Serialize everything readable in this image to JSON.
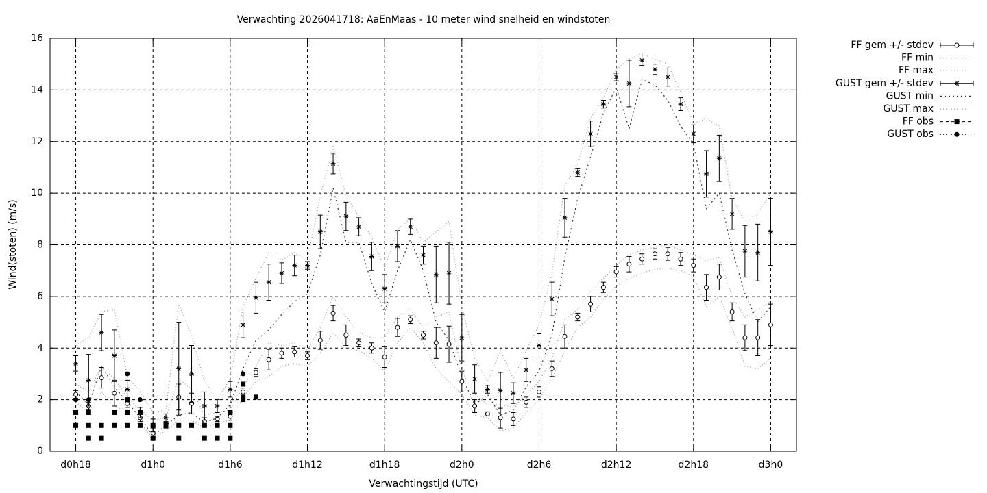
{
  "chart_data": {
    "type": "errorbar",
    "title": "Verwachting 2026041718: AaEnMaas - 10 meter wind snelheid en windstoten",
    "xlabel": "Verwachtingstijd (UTC)",
    "ylabel": "Wind(stoten) (m/s)",
    "xlim": [
      16,
      74
    ],
    "ylim": [
      0,
      16
    ],
    "xticks": [
      {
        "value": 18,
        "label": "d0h18"
      },
      {
        "value": 24,
        "label": "d1h0"
      },
      {
        "value": 30,
        "label": "d1h6"
      },
      {
        "value": 36,
        "label": "d1h12"
      },
      {
        "value": 42,
        "label": "d1h18"
      },
      {
        "value": 48,
        "label": "d2h0"
      },
      {
        "value": 54,
        "label": "d2h6"
      },
      {
        "value": 60,
        "label": "d2h12"
      },
      {
        "value": 66,
        "label": "d2h18"
      },
      {
        "value": 72,
        "label": "d3h0"
      }
    ],
    "yticks": [
      0,
      2,
      4,
      6,
      8,
      10,
      12,
      14,
      16
    ],
    "grid": true,
    "legend": "outside-top-right",
    "x": [
      18,
      19,
      20,
      21,
      22,
      23,
      24,
      25,
      26,
      27,
      28,
      29,
      30,
      31,
      32,
      33,
      34,
      35,
      36,
      37,
      38,
      39,
      40,
      41,
      42,
      43,
      44,
      45,
      46,
      47,
      48,
      49,
      50,
      51,
      52,
      53,
      54,
      55,
      56,
      57,
      58,
      59,
      60,
      61,
      62,
      63,
      64,
      65,
      66,
      67,
      68,
      69,
      70,
      71,
      72
    ],
    "series": [
      {
        "name": "FF gem +/- stdev",
        "color": "#000000",
        "style": "errorbar",
        "marker": "open-circle",
        "values": [
          2.2,
          1.75,
          2.85,
          2.25,
          1.85,
          1.3,
          0.7,
          1.0,
          2.1,
          1.85,
          1.15,
          1.25,
          1.35,
          2.3,
          3.05,
          3.55,
          3.8,
          3.85,
          3.7,
          4.3,
          5.35,
          4.5,
          4.2,
          4.0,
          3.65,
          4.8,
          5.1,
          4.5,
          4.2,
          4.15,
          2.7,
          1.75,
          1.45,
          1.3,
          1.25,
          1.9,
          2.3,
          3.2,
          4.45,
          5.2,
          5.7,
          6.35,
          6.95,
          7.25,
          7.45,
          7.65,
          7.65,
          7.45,
          7.2,
          6.35,
          6.75,
          5.4,
          4.4,
          4.4,
          4.9
        ],
        "error": [
          0.15,
          0.15,
          0.4,
          0.5,
          0.15,
          0.15,
          0.2,
          0.1,
          0.5,
          0.4,
          0.15,
          0.1,
          0.15,
          0.15,
          0.15,
          0.4,
          0.2,
          0.2,
          0.15,
          0.35,
          0.3,
          0.4,
          0.15,
          0.2,
          0.4,
          0.35,
          0.15,
          0.15,
          0.6,
          0.7,
          0.4,
          0.25,
          0.08,
          0.4,
          0.25,
          0.2,
          0.2,
          0.3,
          0.45,
          0.15,
          0.3,
          0.2,
          0.2,
          0.3,
          0.2,
          0.2,
          0.25,
          0.25,
          0.25,
          0.5,
          0.5,
          0.35,
          0.5,
          0.7,
          0.8
        ]
      },
      {
        "name": "FF min",
        "color": "#999999",
        "style": "line",
        "dash": "1,3",
        "values": [
          1.9,
          1.5,
          2.3,
          1.7,
          1.6,
          1.1,
          0.5,
          0.8,
          1.2,
          1.2,
          0.9,
          1.1,
          1.2,
          2.1,
          2.7,
          2.9,
          3.3,
          3.4,
          3.3,
          3.8,
          4.6,
          4.0,
          3.9,
          3.6,
          3.1,
          4.2,
          4.8,
          4.2,
          3.2,
          2.7,
          2.2,
          1.4,
          1.3,
          0.8,
          0.9,
          1.5,
          2.0,
          2.8,
          3.9,
          4.8,
          5.2,
          5.9,
          6.4,
          6.7,
          6.9,
          7.05,
          7.1,
          7.0,
          6.8,
          5.6,
          6.0,
          4.8,
          3.3,
          3.2,
          3.6
        ]
      },
      {
        "name": "FF max",
        "color": "#999999",
        "style": "line",
        "dash": "1,3",
        "values": [
          2.6,
          2.3,
          3.3,
          2.8,
          2.1,
          1.6,
          1.2,
          1.3,
          2.8,
          2.4,
          1.4,
          1.5,
          1.6,
          2.5,
          3.3,
          4.2,
          4.1,
          4.2,
          3.9,
          4.8,
          6.0,
          5.2,
          4.6,
          4.4,
          4.4,
          5.2,
          5.5,
          4.8,
          5.2,
          5.4,
          3.1,
          2.2,
          1.8,
          1.8,
          1.7,
          2.2,
          2.7,
          3.6,
          5.1,
          5.5,
          6.2,
          6.7,
          7.2,
          7.6,
          7.8,
          7.9,
          8.0,
          7.8,
          7.6,
          7.4,
          7.5,
          6.0,
          5.2,
          5.5,
          5.8
        ]
      },
      {
        "name": "GUST gem +/- stdev",
        "color": "#000000",
        "style": "errorbar",
        "marker": "star",
        "values": [
          3.4,
          2.75,
          4.6,
          3.7,
          2.4,
          1.5,
          1.0,
          1.3,
          3.2,
          3.0,
          1.75,
          1.75,
          2.4,
          4.9,
          5.95,
          6.55,
          6.9,
          7.2,
          7.2,
          8.5,
          11.15,
          9.1,
          8.7,
          7.55,
          6.3,
          7.95,
          8.7,
          7.6,
          6.85,
          6.9,
          4.4,
          2.8,
          2.4,
          2.35,
          2.25,
          3.15,
          4.1,
          5.9,
          9.05,
          10.8,
          12.3,
          13.45,
          14.5,
          14.25,
          15.15,
          14.8,
          14.5,
          13.45,
          12.3,
          10.75,
          11.35,
          9.2,
          7.75,
          7.7,
          8.5
        ],
        "error": [
          0.3,
          1.0,
          0.7,
          1.0,
          0.35,
          0.2,
          0.25,
          0.15,
          1.8,
          1.1,
          0.55,
          0.25,
          0.3,
          0.5,
          0.6,
          0.7,
          0.4,
          0.4,
          0.15,
          0.65,
          0.4,
          0.55,
          0.35,
          0.55,
          0.55,
          0.6,
          0.3,
          0.35,
          1.1,
          1.2,
          0.9,
          0.55,
          0.15,
          0.7,
          0.4,
          0.45,
          0.45,
          0.65,
          0.75,
          0.15,
          0.5,
          0.15,
          0.15,
          0.9,
          0.2,
          0.2,
          0.35,
          0.25,
          0.35,
          0.9,
          0.9,
          0.6,
          1.0,
          1.1,
          1.3
        ]
      },
      {
        "name": "GUST min",
        "color": "#333333",
        "style": "line",
        "dash": "2,4",
        "values": [
          2.3,
          1.8,
          3.3,
          2.5,
          1.9,
          1.3,
          0.6,
          1.0,
          1.4,
          1.5,
          1.1,
          1.3,
          1.8,
          3.2,
          4.3,
          4.7,
          5.3,
          5.8,
          6.1,
          7.6,
          10.2,
          8.1,
          8.1,
          6.5,
          5.4,
          7.0,
          8.2,
          7.0,
          5.0,
          4.3,
          2.9,
          1.8,
          2.2,
          1.4,
          1.6,
          2.5,
          3.1,
          4.5,
          7.5,
          9.8,
          11.4,
          13.1,
          14.1,
          12.5,
          14.4,
          14.2,
          13.6,
          12.6,
          11.9,
          9.4,
          10.0,
          7.8,
          6.1,
          5.0,
          5.6
        ]
      },
      {
        "name": "GUST max",
        "color": "#999999",
        "style": "line",
        "dash": "1,3",
        "values": [
          4.1,
          4.4,
          5.4,
          5.5,
          2.9,
          2.3,
          1.5,
          1.6,
          5.7,
          4.5,
          2.7,
          2.0,
          2.8,
          5.6,
          6.7,
          7.7,
          7.4,
          7.7,
          7.4,
          9.9,
          11.8,
          9.9,
          9.1,
          8.3,
          7.1,
          8.6,
          9.0,
          8.1,
          8.5,
          8.9,
          5.6,
          3.6,
          2.7,
          3.9,
          2.8,
          3.9,
          4.9,
          6.9,
          10.3,
          11.1,
          12.9,
          13.7,
          14.8,
          15.2,
          15.4,
          15.2,
          15.0,
          13.9,
          12.7,
          12.9,
          12.6,
          9.8,
          8.9,
          9.2,
          10.0
        ]
      },
      {
        "name": "FF obs",
        "color": "#000000",
        "style": "points",
        "marker": "square",
        "x": [
          18,
          18,
          19,
          19,
          19,
          20,
          20,
          21,
          21,
          22,
          22,
          22,
          23,
          23,
          24,
          24,
          25,
          26,
          26,
          27,
          28,
          28,
          29,
          29,
          30,
          30,
          30,
          31,
          31,
          31,
          32
        ],
        "values": [
          1.0,
          1.5,
          0.5,
          1.0,
          1.5,
          0.5,
          1.0,
          1.0,
          1.5,
          1.0,
          1.5,
          2.0,
          1.0,
          1.5,
          0.5,
          1.0,
          1.0,
          0.5,
          1.0,
          1.0,
          0.5,
          1.0,
          0.5,
          1.0,
          0.5,
          1.0,
          1.5,
          2.0,
          2.1,
          2.6,
          2.1
        ]
      },
      {
        "name": "GUST obs",
        "color": "#000000",
        "style": "points",
        "marker": "dot",
        "x": [
          18,
          19,
          22,
          23,
          24,
          30,
          31
        ],
        "values": [
          2.0,
          2.0,
          3.0,
          2.0,
          1.0,
          1.5,
          3.0
        ]
      }
    ]
  }
}
